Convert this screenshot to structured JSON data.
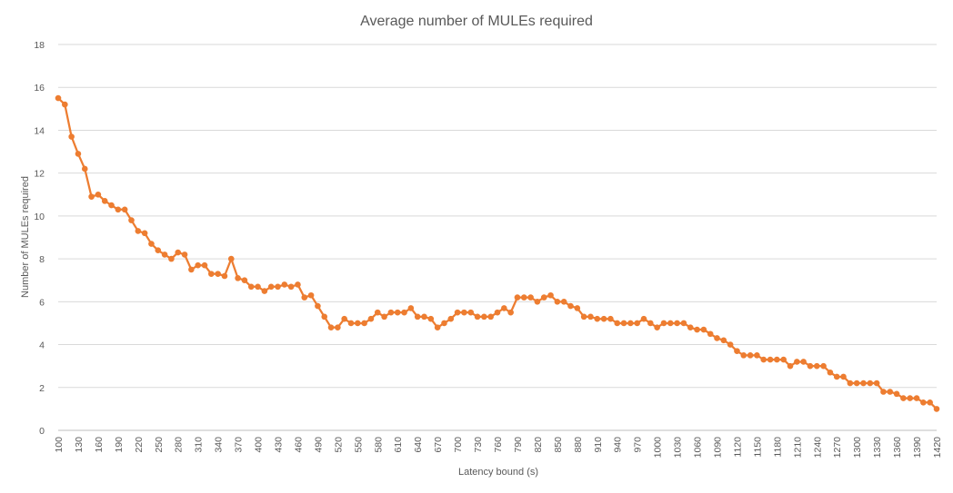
{
  "chart_data": {
    "type": "line",
    "title": "Average number of MULEs required",
    "xlabel": "Latency bound (s)",
    "ylabel": "Number  of  MULEs  required",
    "ylim": [
      0,
      18
    ],
    "y_ticks": [
      0,
      2,
      4,
      6,
      8,
      10,
      12,
      14,
      16,
      18
    ],
    "x_start": 100,
    "x_step": 10,
    "x_tick_labels": [
      "100",
      "130",
      "160",
      "190",
      "220",
      "250",
      "280",
      "310",
      "340",
      "370",
      "400",
      "430",
      "460",
      "490",
      "520",
      "550",
      "580",
      "610",
      "640",
      "670",
      "700",
      "730",
      "760",
      "790",
      "820",
      "850",
      "880",
      "910",
      "940",
      "970",
      "1000",
      "1030",
      "1060",
      "1090",
      "1120",
      "1150",
      "1180",
      "1210",
      "1240",
      "1270",
      "1300",
      "1330",
      "1360",
      "1390",
      "1420"
    ],
    "grid": "horizontal",
    "legend": "none",
    "colors": {
      "series": "#ed7d31",
      "grid": "#d9d9d9",
      "text": "#595959"
    },
    "series": [
      {
        "values": [
          15.5,
          15.2,
          13.7,
          12.9,
          12.2,
          10.9,
          11.0,
          10.7,
          10.5,
          10.3,
          10.3,
          9.8,
          9.3,
          9.2,
          8.7,
          8.4,
          8.2,
          8.0,
          8.3,
          8.2,
          7.5,
          7.7,
          7.7,
          7.3,
          7.3,
          7.2,
          8.0,
          7.1,
          7.0,
          6.7,
          6.7,
          6.5,
          6.7,
          6.7,
          6.8,
          6.7,
          6.8,
          6.2,
          6.3,
          5.8,
          5.3,
          4.8,
          4.8,
          5.2,
          5.0,
          5.0,
          5.0,
          5.2,
          5.5,
          5.3,
          5.5,
          5.5,
          5.5,
          5.7,
          5.3,
          5.3,
          5.2,
          4.8,
          5.0,
          5.2,
          5.5,
          5.5,
          5.5,
          5.3,
          5.3,
          5.3,
          5.5,
          5.7,
          5.5,
          6.2,
          6.2,
          6.2,
          6.0,
          6.2,
          6.3,
          6.0,
          6.0,
          5.8,
          5.7,
          5.3,
          5.3,
          5.2,
          5.2,
          5.2,
          5.0,
          5.0,
          5.0,
          5.0,
          5.2,
          5.0,
          4.8,
          5.0,
          5.0,
          5.0,
          5.0,
          4.8,
          4.7,
          4.7,
          4.5,
          4.3,
          4.2,
          4.0,
          3.7,
          3.5,
          3.5,
          3.5,
          3.3,
          3.3,
          3.3,
          3.3,
          3.0,
          3.2,
          3.2,
          3.0,
          3.0,
          3.0,
          2.7,
          2.5,
          2.5,
          2.2,
          2.2,
          2.2,
          2.2,
          2.2,
          1.8,
          1.8,
          1.7,
          1.5,
          1.5,
          1.5,
          1.3,
          1.3,
          1.0
        ]
      }
    ]
  }
}
